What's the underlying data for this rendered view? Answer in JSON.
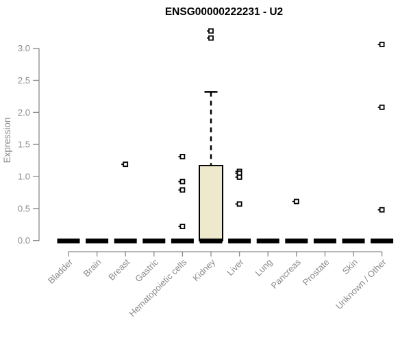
{
  "chart_data": {
    "type": "boxplot",
    "title": "ENSG00000222231 - U2",
    "xlabel": "",
    "ylabel": "Expression",
    "ylim": [
      0.0,
      3.3
    ],
    "grid": false,
    "legend": null,
    "x_tick_rotation": 45,
    "ytick_values": [
      0.0,
      0.5,
      1.0,
      1.5,
      2.0,
      2.5,
      3.0
    ],
    "ytick_labels": [
      "0.0",
      "0.5",
      "1.0",
      "1.5",
      "2.0",
      "2.5",
      "3.0"
    ],
    "categories": [
      "Bladder",
      "Brain",
      "Breast",
      "Gastric",
      "Hematopoietic cells",
      "Kidney",
      "Liver",
      "Lung",
      "Pancreas",
      "Prostate",
      "Skin",
      "Unknown / Other"
    ],
    "boxes": [
      {
        "category": "Bladder",
        "q1": 0,
        "median": 0,
        "q3": 0,
        "whisker_low": 0,
        "whisker_high": 0,
        "outliers": []
      },
      {
        "category": "Brain",
        "q1": 0,
        "median": 0,
        "q3": 0,
        "whisker_low": 0,
        "whisker_high": 0,
        "outliers": []
      },
      {
        "category": "Breast",
        "q1": 0,
        "median": 0,
        "q3": 0,
        "whisker_low": 0,
        "whisker_high": 0,
        "outliers": [
          1.19
        ]
      },
      {
        "category": "Gastric",
        "q1": 0,
        "median": 0,
        "q3": 0,
        "whisker_low": 0,
        "whisker_high": 0,
        "outliers": []
      },
      {
        "category": "Hematopoietic cells",
        "q1": 0,
        "median": 0,
        "q3": 0,
        "whisker_low": 0,
        "whisker_high": 0,
        "outliers": [
          1.31,
          0.92,
          0.79,
          0.22
        ]
      },
      {
        "category": "Kidney",
        "q1": 0,
        "median": 0,
        "q3": 1.17,
        "whisker_low": 0,
        "whisker_high": 2.32,
        "outliers": [
          3.27,
          3.16
        ]
      },
      {
        "category": "Liver",
        "q1": 0,
        "median": 0,
        "q3": 0,
        "whisker_low": 0,
        "whisker_high": 0,
        "outliers": [
          1.08,
          1.05,
          0.99,
          0.57
        ]
      },
      {
        "category": "Lung",
        "q1": 0,
        "median": 0,
        "q3": 0,
        "whisker_low": 0,
        "whisker_high": 0,
        "outliers": []
      },
      {
        "category": "Pancreas",
        "q1": 0,
        "median": 0,
        "q3": 0,
        "whisker_low": 0,
        "whisker_high": 0,
        "outliers": [
          0.61
        ]
      },
      {
        "category": "Prostate",
        "q1": 0,
        "median": 0,
        "q3": 0,
        "whisker_low": 0,
        "whisker_high": 0,
        "outliers": []
      },
      {
        "category": "Skin",
        "q1": 0,
        "median": 0,
        "q3": 0,
        "whisker_low": 0,
        "whisker_high": 0,
        "outliers": []
      },
      {
        "category": "Unknown / Other",
        "q1": 0,
        "median": 0,
        "q3": 0,
        "whisker_low": 0,
        "whisker_high": 0,
        "outliers": [
          3.06,
          2.08,
          0.48
        ]
      }
    ],
    "colors": {
      "box_fill": "#EEE8CD",
      "box_stroke": "#000000",
      "median_bar": "#000000",
      "outlier_fill": "#ffffff",
      "outlier_stroke": "#000000",
      "axis": "#8a8a8a",
      "tick_text": "#8a8a8a",
      "title_text": "#000000",
      "background": "#ffffff"
    }
  }
}
